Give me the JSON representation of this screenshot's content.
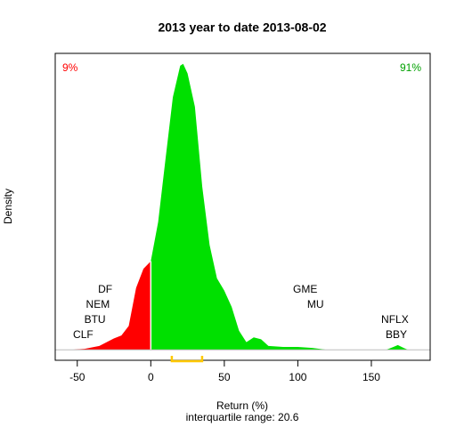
{
  "chart_data": {
    "type": "density",
    "title": "2013  year to date 2013-08-02",
    "xlabel": "Return (%)",
    "ylabel": "Density",
    "note": "interquartile range: 20.6",
    "xlim": [
      -65,
      190
    ],
    "ylim": [
      -0.0011,
      0.0311
    ],
    "xticks": [
      -50,
      0,
      50,
      100,
      150
    ],
    "series": [
      {
        "color": "#ff0000",
        "x": [
          -55,
          -45,
          -35,
          -25,
          -20,
          -15,
          -10,
          -5,
          0
        ],
        "values": [
          0,
          0.0001,
          0.0004,
          0.0012,
          0.0015,
          0.0025,
          0.0065,
          0.0085,
          0.0093
        ]
      },
      {
        "color": "#00e000",
        "x": [
          0,
          5,
          10,
          15,
          20,
          22,
          25,
          30,
          35,
          40,
          45,
          50,
          55,
          60,
          65,
          70,
          75,
          80,
          90,
          100,
          110,
          120,
          160,
          165,
          168,
          172,
          175
        ],
        "values": [
          0.0093,
          0.0134,
          0.02,
          0.0265,
          0.0298,
          0.03,
          0.029,
          0.0255,
          0.0171,
          0.011,
          0.0075,
          0.0062,
          0.0045,
          0.002,
          0.0008,
          0.0013,
          0.0011,
          0.0004,
          0.0003,
          0.0003,
          0.0002,
          0,
          0,
          0.0003,
          0.0005,
          0.0002,
          0
        ]
      }
    ],
    "share_labels": [
      {
        "text": "9%",
        "color": "#ff0000"
      },
      {
        "text": "91%",
        "color": "#00a000"
      }
    ],
    "low_labels": [
      {
        "text": "CLF",
        "x": -46
      },
      {
        "text": "BTU",
        "x": -38
      },
      {
        "text": "NEM",
        "x": -36
      },
      {
        "text": "DF",
        "x": -31
      }
    ],
    "high_labels": [
      {
        "text": "BBY",
        "x": 167
      },
      {
        "text": "NFLX",
        "x": 166
      },
      {
        "text": "MU",
        "x": 112
      },
      {
        "text": "GME",
        "x": 105
      }
    ],
    "quartiles": [
      14.3,
      34.9
    ],
    "quartile_color": "#ffc800"
  }
}
